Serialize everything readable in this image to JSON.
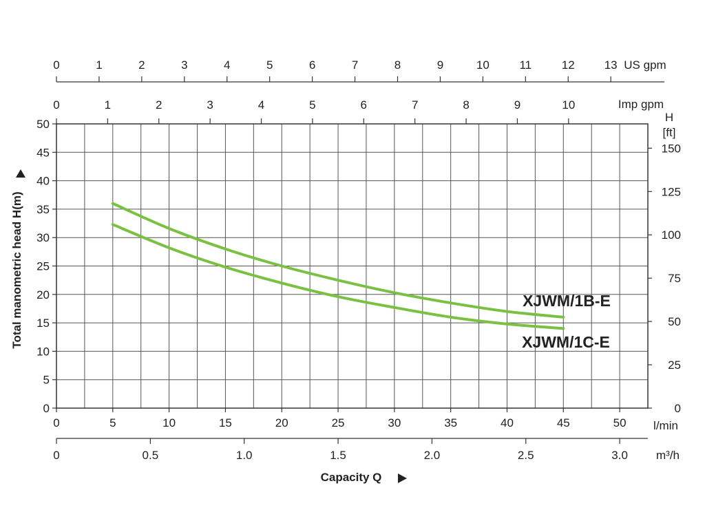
{
  "chart_data": {
    "type": "line",
    "xlabel": "Capacity Q",
    "ylabel": "Total manometric head H(m)",
    "xlim": [
      0,
      52.5
    ],
    "ylim": [
      0,
      50
    ],
    "x_ticks": [
      0,
      5,
      10,
      15,
      20,
      25,
      30,
      35,
      40,
      45,
      50
    ],
    "x_unit": "l/min",
    "y_ticks": [
      0,
      5,
      10,
      15,
      20,
      25,
      30,
      35,
      40,
      45,
      50
    ],
    "grid": true,
    "secondary_axes": {
      "us_gpm": {
        "unit": "US gpm",
        "per_lmin": 0.26417,
        "ticks": [
          0,
          1,
          2,
          3,
          4,
          5,
          6,
          7,
          8,
          9,
          10,
          11,
          12,
          13
        ]
      },
      "imp_gpm": {
        "unit": "Imp gpm",
        "per_lmin": 0.219969,
        "ticks": [
          0,
          1,
          2,
          3,
          4,
          5,
          6,
          7,
          8,
          9,
          10
        ]
      },
      "m3h": {
        "unit": "m³/h",
        "per_lmin": 0.06,
        "ticks": [
          "0",
          "0.5",
          "1.0",
          "1.5",
          "2.0",
          "2.5",
          "3.0"
        ]
      },
      "feet": {
        "unit_top": "H",
        "unit_bottom": "[ft]",
        "per_m": 3.28084,
        "ticks": [
          0,
          25,
          50,
          75,
          100,
          125,
          150
        ]
      }
    },
    "series": [
      {
        "name": "XJWM/1B-E",
        "color": "#7ac143",
        "x": [
          5,
          10,
          15,
          20,
          25,
          30,
          35,
          40,
          45
        ],
        "y": [
          36,
          31.6,
          28,
          25,
          22.5,
          20.3,
          18.5,
          17,
          16
        ]
      },
      {
        "name": "XJWM/1C-E",
        "color": "#7ac143",
        "x": [
          5,
          10,
          15,
          20,
          25,
          30,
          35,
          40,
          45
        ],
        "y": [
          32.3,
          28.2,
          24.8,
          22,
          19.6,
          17.7,
          16,
          14.8,
          14
        ]
      }
    ]
  }
}
